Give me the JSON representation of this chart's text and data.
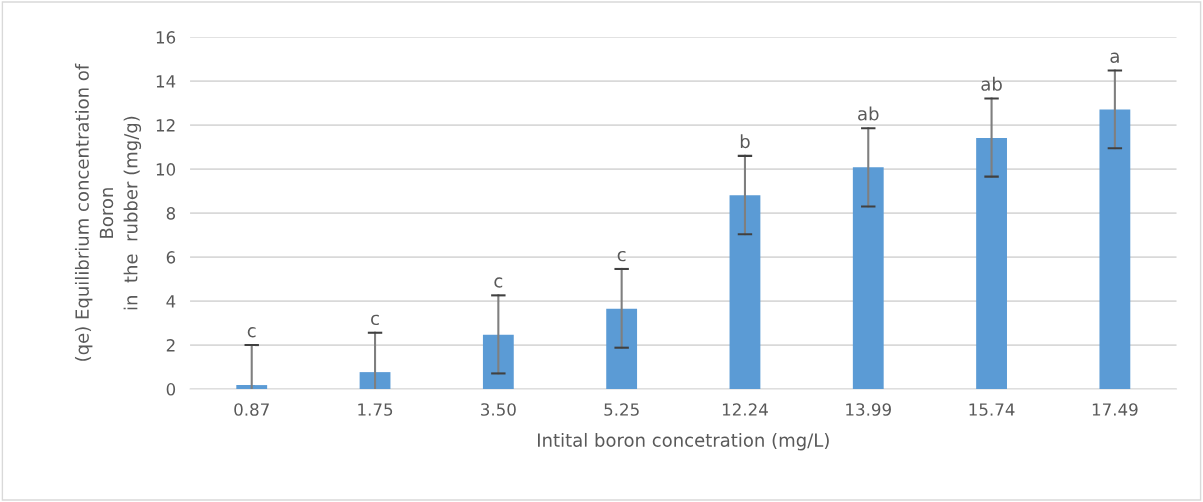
{
  "chart_data": {
    "type": "bar",
    "xlabel": "Intital boron concetration (mg/L)",
    "ylabel": "(qe) Equilibrium concentration of\nBoron\nin  the  rubber (mg/g)",
    "categories": [
      "0.87",
      "1.75",
      "3.50",
      "5.25",
      "12.24",
      "13.99",
      "15.74",
      "17.49"
    ],
    "values": [
      0.18,
      0.77,
      2.47,
      3.65,
      8.81,
      10.08,
      11.42,
      12.71
    ],
    "errors": [
      [
        0,
        2.0
      ],
      [
        0,
        2.56
      ],
      [
        0.71,
        4.26
      ],
      [
        1.88,
        5.46
      ],
      [
        7.04,
        10.6
      ],
      [
        8.3,
        11.86
      ],
      [
        9.66,
        13.21
      ],
      [
        10.95,
        14.48
      ]
    ],
    "color": "#5b9bd5",
    "ylim": [
      0,
      16
    ],
    "yticks": [
      0,
      2,
      4,
      6,
      8,
      10,
      12,
      14,
      16
    ],
    "grid": "y",
    "annotations": [
      {
        "text": "c",
        "x": "0.87",
        "y": 2.0
      },
      {
        "text": "c",
        "x": "1.75",
        "y": 2.56
      },
      {
        "text": "c",
        "x": "3.50",
        "y": 4.26
      },
      {
        "text": "c",
        "x": "5.25",
        "y": 5.46
      },
      {
        "text": "b",
        "x": "12.24",
        "y": 10.6
      },
      {
        "text": "ab",
        "x": "13.99",
        "y": 11.86
      },
      {
        "text": "ab",
        "x": "15.74",
        "y": 13.21
      },
      {
        "text": "a",
        "x": "17.49",
        "y": 14.48
      }
    ]
  }
}
